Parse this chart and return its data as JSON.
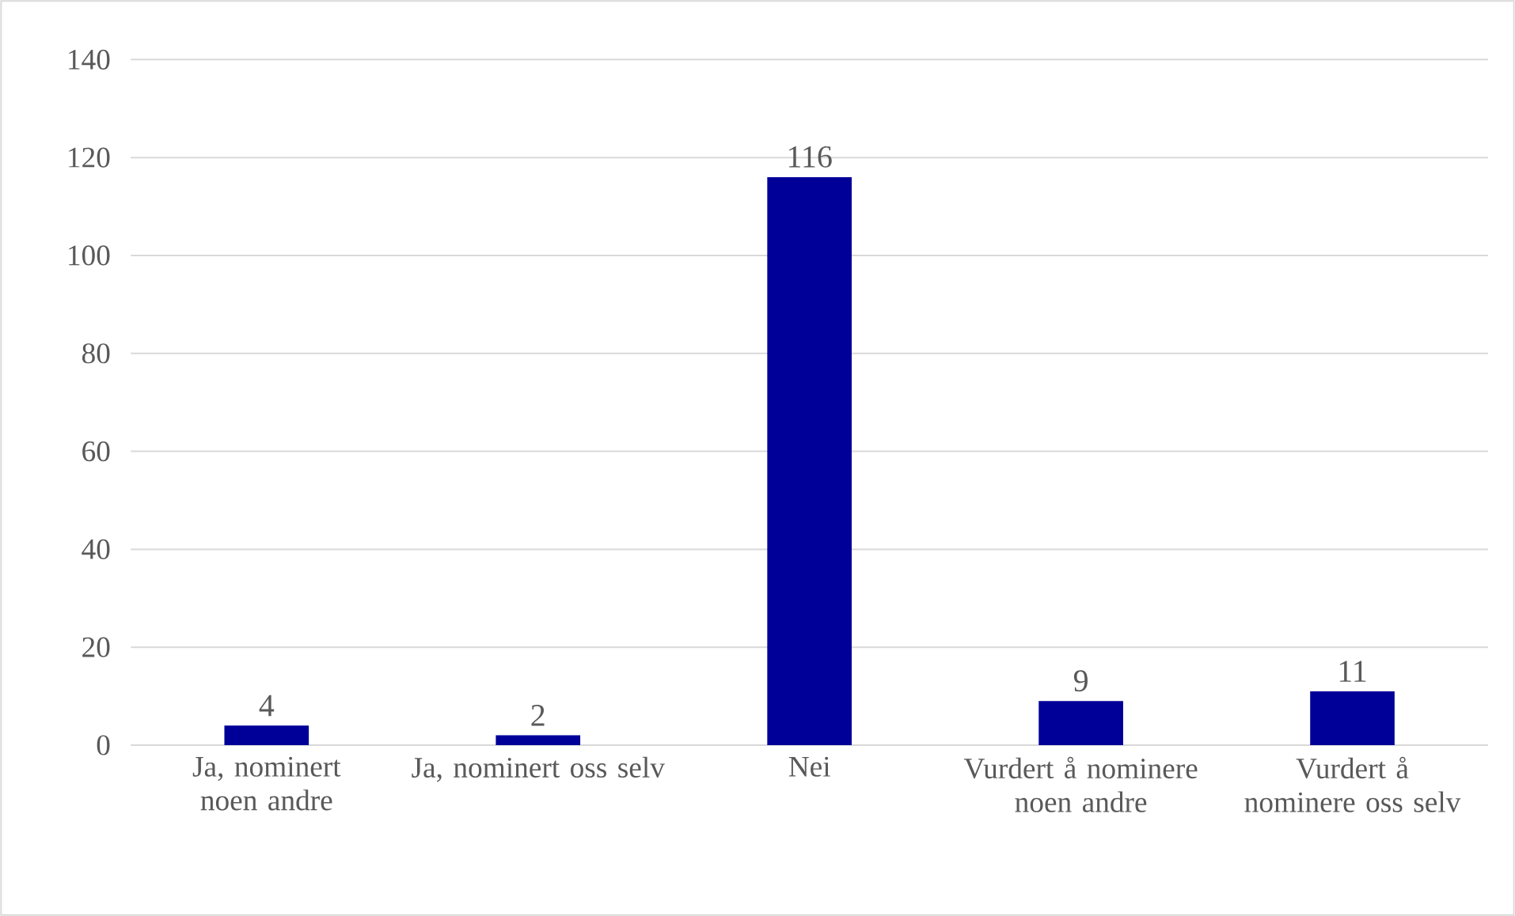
{
  "chart_data": {
    "type": "bar",
    "categories": [
      "Ja, nominert noen andre",
      "Ja, nominert oss selv",
      "Nei",
      "Vurdert å nominere noen andre",
      "Vurdert å nominere oss selv"
    ],
    "values": [
      4,
      2,
      116,
      9,
      11
    ],
    "color": "#000099",
    "ylim": [
      0,
      140
    ],
    "yticks": [
      0,
      20,
      40,
      60,
      80,
      100,
      120,
      140
    ],
    "grid": "y",
    "data_labels": true
  }
}
